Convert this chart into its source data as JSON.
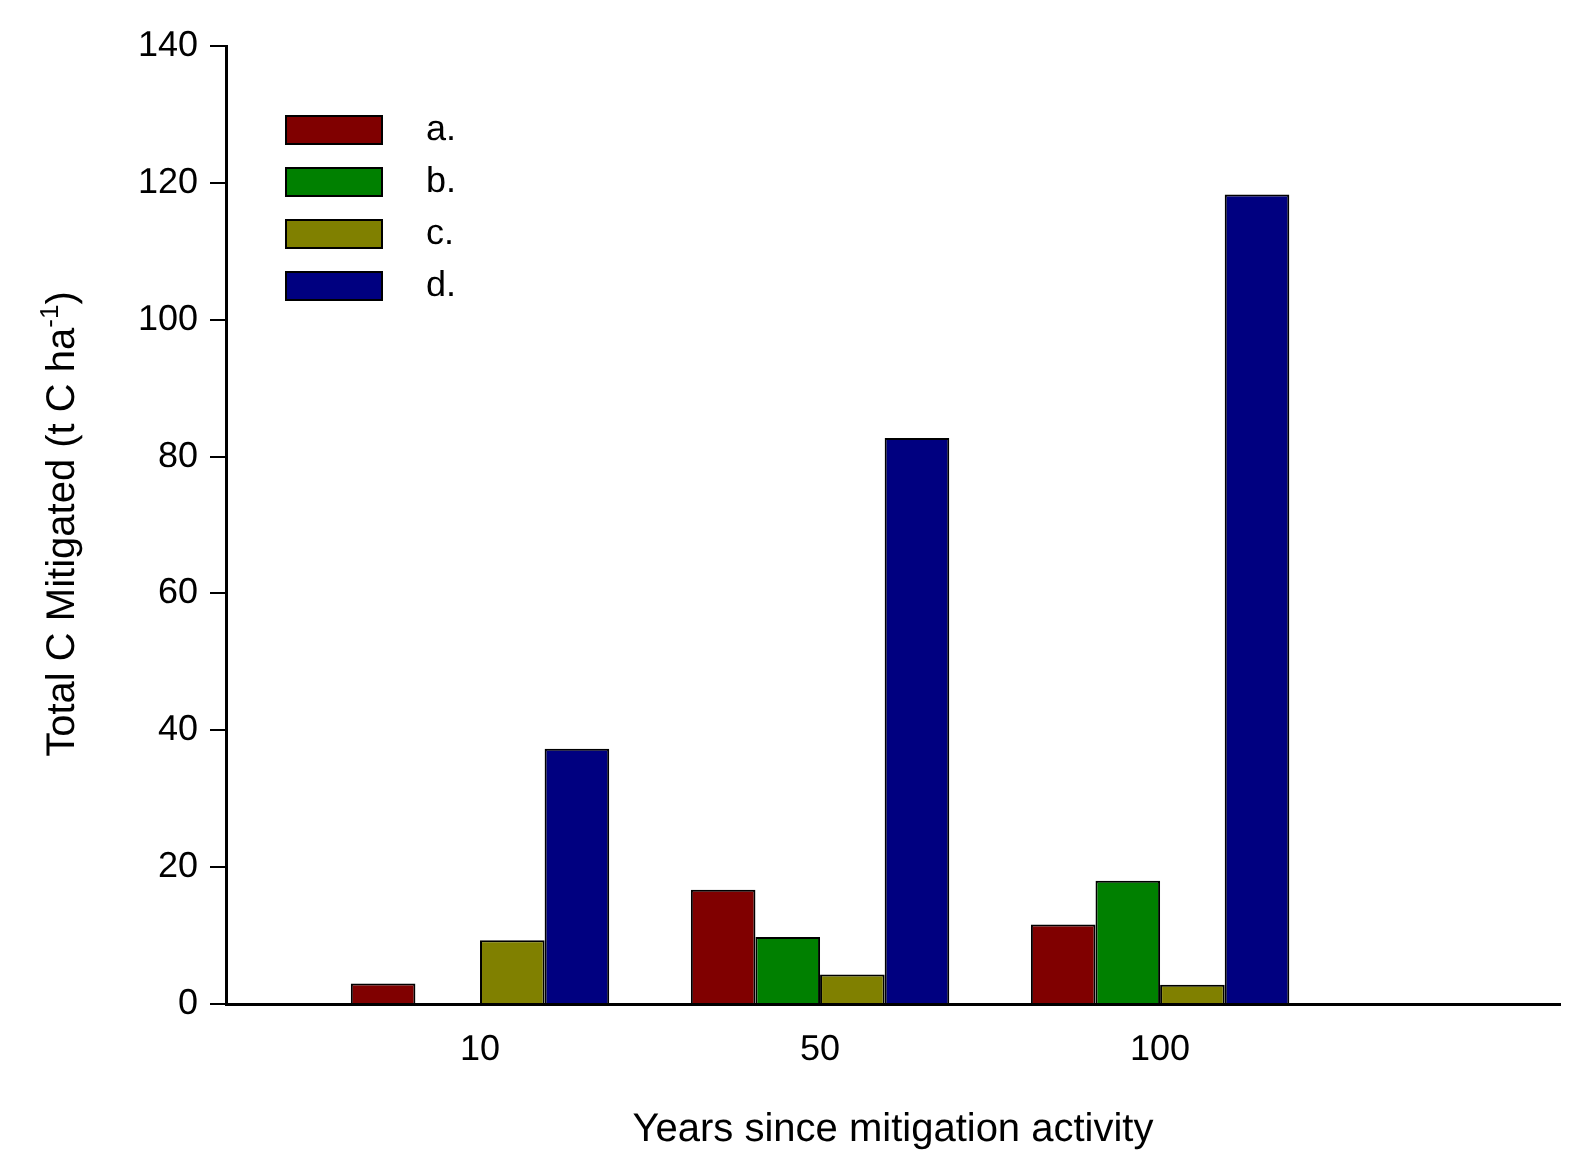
{
  "chart_data": {
    "type": "bar",
    "xlabel": "Years since mitigation activity",
    "ylabel": "Total C Mitigated (t C ha$^{-1}$)",
    "categories": [
      "10",
      "50",
      "100"
    ],
    "series": [
      {
        "name": "a.",
        "color": "#800000",
        "values": [
          3.0,
          16.7,
          11.6
        ]
      },
      {
        "name": "b.",
        "color": "#008000",
        "values": [
          0,
          9.8,
          18.0
        ]
      },
      {
        "name": "c.",
        "color": "#808000",
        "values": [
          9.3,
          4.3,
          2.8
        ]
      },
      {
        "name": "d.",
        "color": "#000080",
        "values": [
          37.3,
          82.7,
          118.3
        ]
      }
    ],
    "ylim": [
      0,
      140
    ],
    "yticks": [
      0,
      20,
      40,
      60,
      80,
      100,
      120,
      140
    ],
    "grid": false,
    "legend": "top left"
  }
}
